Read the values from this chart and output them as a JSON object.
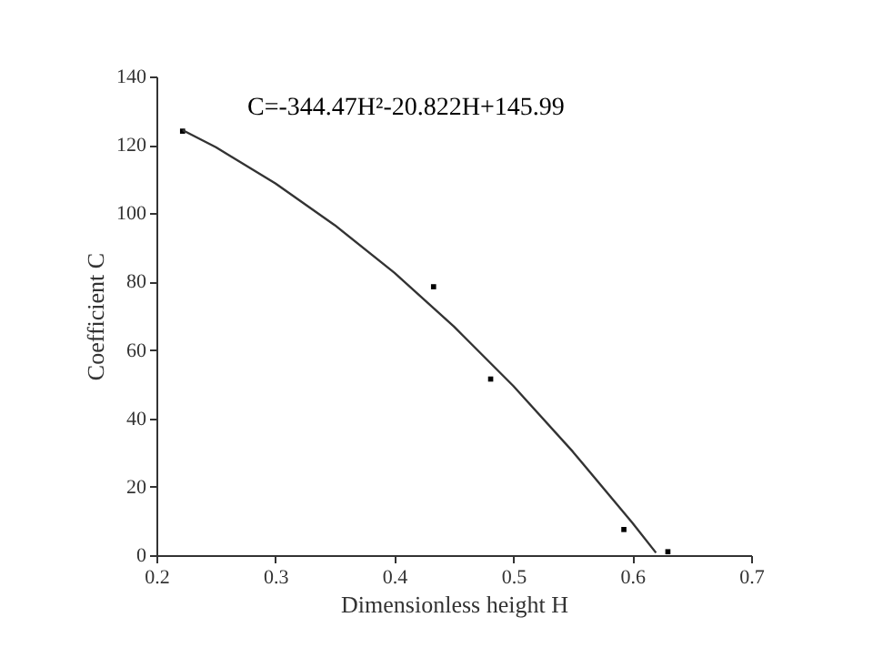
{
  "chart_data": {
    "type": "scatter",
    "xlabel": "Dimensionless height H",
    "ylabel": "Coefficient C",
    "annotations": [
      "C=-344.47H²-20.822H+145.99"
    ],
    "xlim": [
      0.2,
      0.7
    ],
    "xticks": [
      0.2,
      0.3,
      0.4,
      0.5,
      0.6,
      0.7
    ],
    "ylim": [
      0,
      140
    ],
    "yticks": [
      0,
      20,
      40,
      60,
      80,
      100,
      120,
      140
    ],
    "grid": false,
    "marker": "square",
    "series": [
      {
        "color": "#000000",
        "x": [
          0.222,
          0.433,
          0.481,
          0.593,
          0.63
        ],
        "values": [
          124,
          78.5,
          51.5,
          7.5,
          1
        ]
      },
      {
        "type": "line",
        "marker": "none",
        "color": "#333333",
        "line_style": "solid",
        "x": [
          0.222,
          0.25,
          0.3,
          0.35,
          0.4,
          0.45,
          0.5,
          0.55,
          0.6,
          0.62
        ],
        "values": [
          124.3,
          119.3,
          108.7,
          96.5,
          82.6,
          66.9,
          49.5,
          30.3,
          9.5,
          0.7
        ]
      }
    ]
  }
}
